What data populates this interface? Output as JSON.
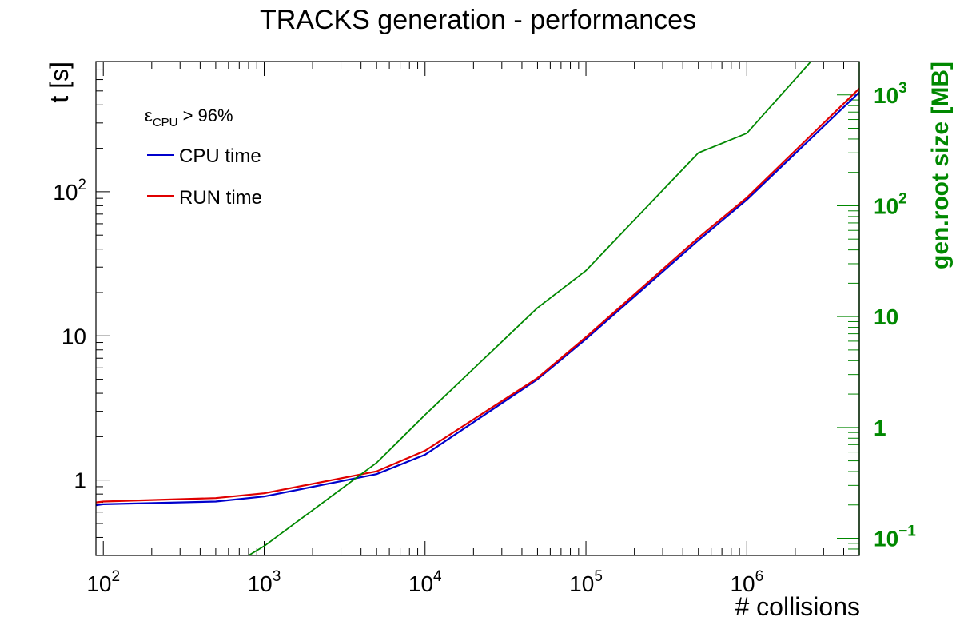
{
  "chart_data": {
    "type": "line",
    "title": "TRACKS generation - performances",
    "xlabel": "# collisions",
    "ylabel": "t [s]",
    "y2label": "gen.root size [MB]",
    "xscale": "log",
    "yscale": "log",
    "y2scale": "log",
    "xlim": [
      90,
      5000000
    ],
    "ylim": [
      0.3,
      800
    ],
    "y2lim": [
      0.07,
      2000
    ],
    "x_tick_labels": [
      {
        "value": 100,
        "base": "10",
        "exp": "2"
      },
      {
        "value": 1000,
        "base": "10",
        "exp": "3"
      },
      {
        "value": 10000,
        "base": "10",
        "exp": "4"
      },
      {
        "value": 100000,
        "base": "10",
        "exp": "5"
      },
      {
        "value": 1000000,
        "base": "10",
        "exp": "6"
      }
    ],
    "y_tick_labels": [
      {
        "value": 1,
        "base": "1",
        "exp": ""
      },
      {
        "value": 10,
        "base": "10",
        "exp": ""
      },
      {
        "value": 100,
        "base": "10",
        "exp": "2"
      }
    ],
    "y2_tick_labels": [
      {
        "value": 0.1,
        "base": "10",
        "exp": "−1"
      },
      {
        "value": 1,
        "base": "1",
        "exp": ""
      },
      {
        "value": 10,
        "base": "10",
        "exp": ""
      },
      {
        "value": 100,
        "base": "10",
        "exp": "2"
      },
      {
        "value": 1000,
        "base": "10",
        "exp": "3"
      }
    ],
    "legend": {
      "placement": "top-left",
      "header_symbol": "ε",
      "header_sub": "CPU",
      "header_rest": " > 96%"
    },
    "series": [
      {
        "name": "CPU time",
        "color": "#0000cc",
        "axis": "left",
        "x": [
          90,
          100,
          500,
          1000,
          5000,
          10000,
          50000,
          100000,
          500000,
          1000000,
          5000000
        ],
        "y": [
          0.67,
          0.68,
          0.71,
          0.77,
          1.1,
          1.5,
          5.0,
          9.5,
          46,
          88,
          490
        ]
      },
      {
        "name": "RUN time",
        "color": "#e00000",
        "axis": "left",
        "x": [
          90,
          100,
          500,
          1000,
          5000,
          10000,
          50000,
          100000,
          500000,
          1000000,
          5000000
        ],
        "y": [
          0.7,
          0.71,
          0.75,
          0.81,
          1.15,
          1.6,
          5.1,
          9.8,
          48,
          91,
          520
        ]
      },
      {
        "name": "",
        "color": "#008800",
        "axis": "right",
        "x": [
          800,
          1000,
          5000,
          10000,
          50000,
          100000,
          500000,
          1000000,
          2500000
        ],
        "y": [
          0.07,
          0.085,
          0.48,
          1.3,
          12,
          26,
          300,
          450,
          2000
        ]
      }
    ]
  }
}
